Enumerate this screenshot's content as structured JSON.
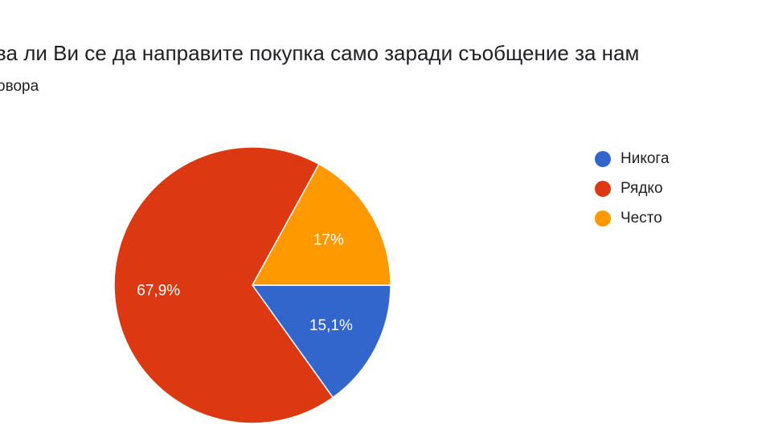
{
  "header": {
    "title": "ва ли Ви се да направите покупка само заради съобщение за нам",
    "responses_label": "овора"
  },
  "colors": {
    "blue": "#3366cc",
    "red": "#dc3912",
    "orange": "#ff9900"
  },
  "chart_data": {
    "type": "pie",
    "title": "",
    "legend_position": "right",
    "slices": [
      {
        "label": "Никога",
        "value": 15.1,
        "display": "15,1%",
        "color": "#3366cc"
      },
      {
        "label": "Рядко",
        "value": 67.9,
        "display": "67,9%",
        "color": "#dc3912"
      },
      {
        "label": "Често",
        "value": 17.0,
        "display": "17%",
        "color": "#ff9900"
      }
    ]
  }
}
